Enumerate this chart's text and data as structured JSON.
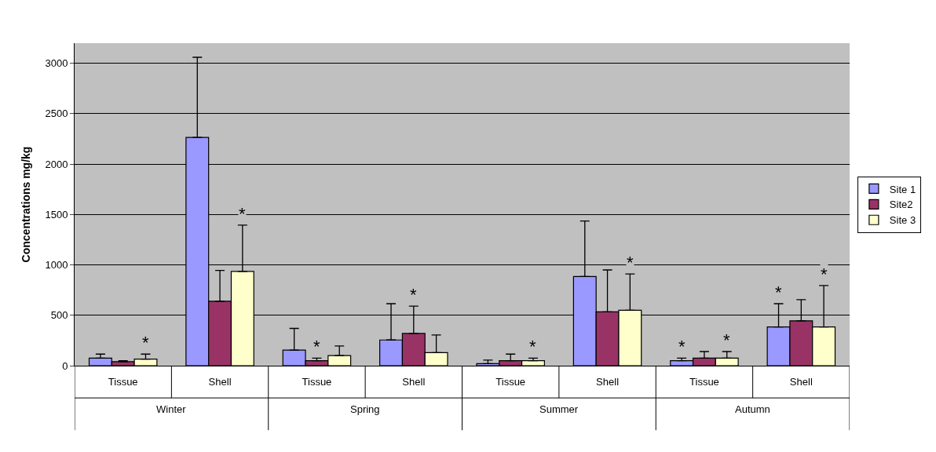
{
  "chart_data": {
    "type": "bar",
    "ylabel": "Concentrations mg/kg",
    "categories": [
      "Tissue",
      "Shell",
      "Tissue",
      "Shell",
      "Tissue",
      "Shell",
      "Tissue",
      "Shell"
    ],
    "annotations": [
      "Winter",
      "Spring",
      "Summer",
      "Autumn"
    ],
    "series": [
      {
        "name": "Site 1",
        "color": "#9999ff",
        "values": [
          75,
          2265,
          155,
          255,
          20,
          885,
          50,
          385
        ],
        "errors": [
          [
            75,
            115
          ],
          [
            2265,
            3060
          ],
          [
            155,
            370
          ],
          [
            255,
            615
          ],
          [
            20,
            55
          ],
          [
            885,
            1435
          ],
          [
            50,
            75
          ],
          [
            385,
            615
          ]
        ],
        "value_labels": [
          null,
          null,
          null,
          null,
          null,
          null,
          "*",
          "*"
        ]
      },
      {
        "name": "Site2",
        "color": "#993366",
        "values": [
          40,
          640,
          50,
          320,
          50,
          535,
          75,
          445
        ],
        "errors": [
          [
            40,
            50
          ],
          [
            640,
            945
          ],
          [
            50,
            75
          ],
          [
            320,
            590
          ],
          [
            50,
            115
          ],
          [
            535,
            950
          ],
          [
            75,
            140
          ],
          [
            445,
            655
          ]
        ],
        "value_labels": [
          null,
          null,
          "*",
          "*",
          null,
          null,
          null,
          null
        ]
      },
      {
        "name": "Site 3",
        "color": "#ffffcc",
        "values": [
          65,
          935,
          100,
          130,
          50,
          550,
          75,
          385
        ],
        "errors": [
          [
            65,
            115
          ],
          [
            935,
            1395
          ],
          [
            100,
            195
          ],
          [
            130,
            305
          ],
          [
            50,
            75
          ],
          [
            550,
            910
          ],
          [
            75,
            140
          ],
          [
            385,
            795
          ]
        ],
        "value_labels": [
          "*",
          "*",
          null,
          null,
          "*",
          "*",
          "*",
          "*"
        ]
      }
    ],
    "ylim": [
      0,
      3200
    ],
    "yticks": [
      0,
      500,
      1000,
      1500,
      2000,
      2500,
      3000
    ],
    "grid": "y",
    "legend": "right"
  }
}
